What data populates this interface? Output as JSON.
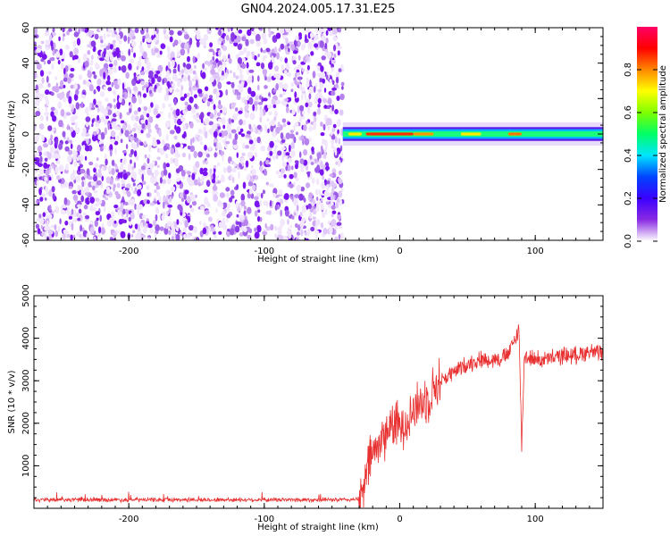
{
  "title": "GN04.2024.005.17.31.E25",
  "chart_data": [
    {
      "type": "heatmap",
      "xlabel": "Height of straight line (km)",
      "ylabel": "Frequency (Hz)",
      "xlim": [
        -270,
        150
      ],
      "ylim": [
        -60,
        60
      ],
      "x_ticks": [
        -200,
        -100,
        0,
        100
      ],
      "y_ticks": [
        -60,
        -40,
        -20,
        0,
        20,
        40,
        60
      ],
      "noise_region_x": [
        -270,
        -42
      ],
      "signal_band_hz": 3,
      "colorbar": {
        "label": "Normalized spectral amplitude",
        "range": [
          0,
          1
        ],
        "ticks": [
          0.0,
          0.2,
          0.4,
          0.6,
          0.8
        ],
        "colormap": [
          "#ffffff",
          "#8a2be2",
          "#3b00ff",
          "#0044ff",
          "#00e5ff",
          "#00ff66",
          "#7fff00",
          "#ffff00",
          "#ff8800",
          "#ff0000",
          "#ff0066"
        ]
      }
    },
    {
      "type": "line",
      "xlabel": "Height of straight line (km)",
      "ylabel": "SNR (10 * v/v)",
      "xlim": [
        -270,
        150
      ],
      "ylim": [
        0,
        5000
      ],
      "x_ticks": [
        -200,
        -100,
        0,
        100
      ],
      "y_ticks": [
        1000,
        2000,
        3000,
        4000,
        5000
      ],
      "color": "#e83030",
      "series": [
        {
          "x": [
            -270,
            -200,
            -100,
            -40,
            -28,
            -22,
            -15,
            -10,
            -5,
            0,
            10,
            20,
            30,
            40,
            50,
            60,
            70,
            80,
            88,
            90,
            92,
            100,
            110,
            120,
            130,
            140,
            150
          ],
          "values": [
            200,
            200,
            200,
            200,
            220,
            1200,
            1500,
            1800,
            2000,
            1900,
            2300,
            2600,
            3000,
            3200,
            3400,
            3500,
            3500,
            3600,
            4200,
            1500,
            3600,
            3500,
            3500,
            3600,
            3600,
            3700,
            3600
          ]
        }
      ]
    }
  ]
}
